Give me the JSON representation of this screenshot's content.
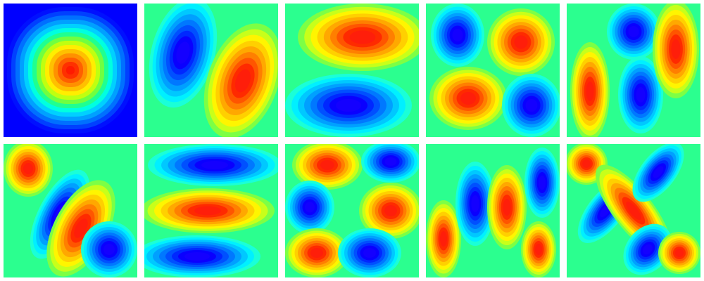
{
  "figure": {
    "type": "grid of 10 contour field plots (eigenmode-like patterns)",
    "colormap": "jet",
    "colors": {
      "negative_extreme": "#1400ff",
      "neutral": "#00ff66",
      "positive_extreme": "#ff1e00",
      "background": "#ffffff"
    },
    "panels": [
      {
        "id": "mode-1",
        "base_color": "#0000ff",
        "blobs": [
          {
            "sign": "+",
            "strength": 1.0
          }
        ]
      },
      {
        "id": "mode-2",
        "base_color": "#2bff8f",
        "blobs": [
          {
            "sign": "-",
            "strength": 1.0
          },
          {
            "sign": "+",
            "strength": 1.0
          }
        ]
      },
      {
        "id": "mode-3",
        "base_color": "#2bff8f",
        "blobs": [
          {
            "sign": "+",
            "strength": 1.0
          },
          {
            "sign": "-",
            "strength": 1.0
          }
        ]
      },
      {
        "id": "mode-4",
        "base_color": "#2bff8f",
        "blobs": [
          {
            "sign": "-"
          },
          {
            "sign": "+"
          },
          {
            "sign": "+"
          },
          {
            "sign": "-"
          }
        ]
      },
      {
        "id": "mode-5",
        "base_color": "#2bff8f",
        "blobs": [
          {
            "sign": "+"
          },
          {
            "sign": "-"
          },
          {
            "sign": "-"
          },
          {
            "sign": "+"
          }
        ]
      },
      {
        "id": "mode-6",
        "base_color": "#2bff8f",
        "blobs": [
          {
            "sign": "+"
          },
          {
            "sign": "-"
          },
          {
            "sign": "+"
          },
          {
            "sign": "-"
          }
        ]
      },
      {
        "id": "mode-7",
        "base_color": "#2bff8f",
        "blobs": [
          {
            "sign": "-"
          },
          {
            "sign": "+"
          },
          {
            "sign": "-"
          }
        ]
      },
      {
        "id": "mode-8",
        "base_color": "#2bff8f",
        "blobs": [
          {
            "sign": "+"
          },
          {
            "sign": "-"
          },
          {
            "sign": "-"
          },
          {
            "sign": "+"
          },
          {
            "sign": "+"
          },
          {
            "sign": "-"
          }
        ]
      },
      {
        "id": "mode-9",
        "base_color": "#2bff8f",
        "blobs": [
          {
            "sign": "+"
          },
          {
            "sign": "-"
          },
          {
            "sign": "+"
          },
          {
            "sign": "-"
          },
          {
            "sign": "+"
          }
        ]
      },
      {
        "id": "mode-10",
        "base_color": "#2bff8f",
        "blobs": [
          {
            "sign": "+"
          },
          {
            "sign": "-"
          },
          {
            "sign": "+"
          },
          {
            "sign": "-"
          },
          {
            "sign": "-"
          },
          {
            "sign": "+"
          }
        ]
      }
    ]
  }
}
